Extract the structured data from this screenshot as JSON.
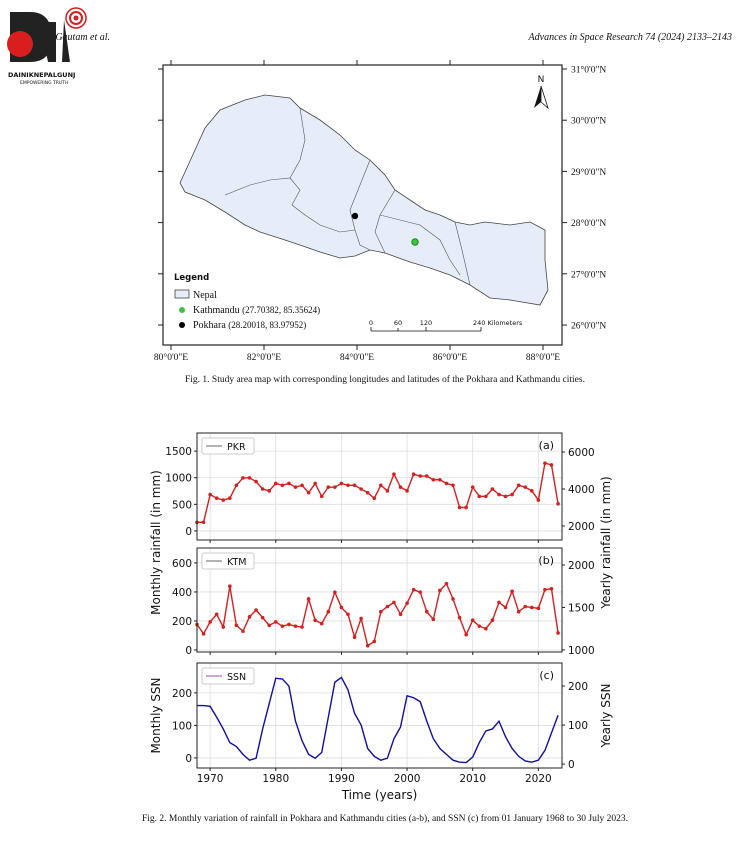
{
  "header": {
    "authors": "S.P. Gautam et al.",
    "journal": "Advances in Space Research 74 (2024) 2133–2143"
  },
  "logo": {
    "name": "DAINIKNEPALGUNJ",
    "tagline": "EMPOWERING TRUTH"
  },
  "figure1": {
    "latitude_labels": [
      "31°0'0\"N",
      "30°0'0\"N",
      "29°0'0\"N",
      "28°0'0\"N",
      "27°0'0\"N",
      "26°0'0\"N"
    ],
    "longitude_labels": [
      "80°0'0\"E",
      "82°0'0\"E",
      "84°0'0\"E",
      "86°0'0\"E",
      "88°0'0\"E"
    ],
    "north": "N",
    "legend": {
      "title": "Legend",
      "nepal": "Nepal",
      "kathmandu": {
        "name": "Kathmandu",
        "coords": "(27.70382, 85.35624)"
      },
      "pokhara": {
        "name": "Pokhara",
        "coords": "(28.20018, 83.97952)"
      }
    },
    "scale_labels": [
      "0",
      "60",
      "120",
      "240 Kilometers"
    ],
    "caption": "Fig. 1. Study area map with corresponding longitudes and latitudes of the Pokhara and Kathmandu cities."
  },
  "chart_data": [
    {
      "type": "line",
      "label": "(a)",
      "legend": "PKR",
      "legend_color": "#666666",
      "y_label": "Monthly rainfall (in mm)",
      "y2_label": "Yearly rainfall (in mm)",
      "y_color": "#111111",
      "y2_color": "#c8191e",
      "x": [
        1968,
        1969,
        1970,
        1971,
        1972,
        1973,
        1974,
        1975,
        1976,
        1977,
        1978,
        1979,
        1980,
        1981,
        1982,
        1983,
        1984,
        1985,
        1986,
        1987,
        1988,
        1989,
        1990,
        1991,
        1992,
        1993,
        1994,
        1995,
        1996,
        1997,
        1998,
        1999,
        2000,
        2001,
        2002,
        2003,
        2004,
        2005,
        2006,
        2007,
        2008,
        2009,
        2010,
        2011,
        2012,
        2013,
        2014,
        2015,
        2016,
        2017,
        2018,
        2019,
        2020,
        2021,
        2022,
        2023
      ],
      "series": [
        {
          "color": "#d62020",
          "axis": "y2",
          "values": [
            2200,
            2200,
            3700,
            3500,
            3400,
            3500,
            4200,
            4600,
            4600,
            4400,
            4000,
            3900,
            4300,
            4200,
            4300,
            4100,
            4200,
            3800,
            4300,
            3600,
            4100,
            4100,
            4300,
            4200,
            4200,
            4000,
            3800,
            3500,
            4200,
            3900,
            4800,
            4100,
            3900,
            4800,
            4700,
            4700,
            4500,
            4500,
            4300,
            4200,
            3000,
            3000,
            4100,
            3600,
            3600,
            4000,
            3700,
            3600,
            3700,
            4200,
            4100,
            3900,
            3400,
            5400,
            5300,
            3200
          ]
        }
      ],
      "xlim": [
        1968,
        2023.6
      ],
      "xticks": [
        1970,
        1980,
        1990,
        2000,
        2010,
        2020
      ],
      "ylim": [
        -170,
        1840
      ],
      "yticks": [
        0,
        500,
        1000,
        1500
      ],
      "y2lim": [
        1240,
        7030
      ],
      "y2ticks": [
        2000,
        4000,
        6000
      ],
      "grid": true
    },
    {
      "type": "line",
      "label": "(b)",
      "legend": "KTM",
      "legend_color": "#666666",
      "y_color": "#111111",
      "y2_color": "#c8191e",
      "x": [
        1968,
        1969,
        1970,
        1971,
        1972,
        1973,
        1974,
        1975,
        1976,
        1977,
        1978,
        1979,
        1980,
        1981,
        1982,
        1983,
        1984,
        1985,
        1986,
        1987,
        1988,
        1989,
        1990,
        1991,
        1992,
        1993,
        1994,
        1995,
        1996,
        1997,
        1998,
        1999,
        2000,
        2001,
        2002,
        2003,
        2004,
        2005,
        2006,
        2007,
        2008,
        2009,
        2010,
        2011,
        2012,
        2013,
        2014,
        2015,
        2016,
        2017,
        2018,
        2019,
        2020,
        2021,
        2022,
        2023
      ],
      "series": [
        {
          "color": "#d62020",
          "axis": "y2",
          "values": [
            1300,
            1190,
            1330,
            1420,
            1270,
            1750,
            1290,
            1220,
            1390,
            1470,
            1380,
            1290,
            1330,
            1280,
            1300,
            1280,
            1270,
            1600,
            1350,
            1310,
            1450,
            1680,
            1500,
            1420,
            1150,
            1370,
            1050,
            1100,
            1450,
            1510,
            1560,
            1420,
            1550,
            1710,
            1680,
            1450,
            1360,
            1700,
            1780,
            1600,
            1380,
            1180,
            1350,
            1280,
            1250,
            1350,
            1560,
            1500,
            1690,
            1450,
            1510,
            1500,
            1490,
            1710,
            1720,
            1200
          ]
        }
      ],
      "xlim": [
        1968,
        2023.6
      ],
      "xticks": [
        1970,
        1980,
        1990,
        2000,
        2010,
        2020
      ],
      "ylim": [
        -14,
        703
      ],
      "yticks": [
        0,
        200,
        400,
        600
      ],
      "y2lim": [
        976,
        2200
      ],
      "y2ticks": [
        1000,
        1500,
        2000
      ],
      "grid": true
    },
    {
      "type": "line",
      "label": "(c)",
      "legend": "SSN",
      "legend_color": "#9a4fb0",
      "y_label": "Monthly SSN",
      "y2_label": "Yearly SSN",
      "x_label": "Time (years)",
      "y_color": "#7b1f86",
      "y2_color": "#1a1aa8",
      "x": [
        1968,
        1969,
        1970,
        1971,
        1972,
        1973,
        1974,
        1975,
        1976,
        1977,
        1978,
        1979,
        1980,
        1981,
        1982,
        1983,
        1984,
        1985,
        1986,
        1987,
        1988,
        1989,
        1990,
        1991,
        1992,
        1993,
        1994,
        1995,
        1996,
        1997,
        1998,
        1999,
        2000,
        2001,
        2002,
        2003,
        2004,
        2005,
        2006,
        2007,
        2008,
        2009,
        2010,
        2011,
        2012,
        2013,
        2014,
        2015,
        2016,
        2017,
        2018,
        2019,
        2020,
        2021,
        2022,
        2023
      ],
      "series": [
        {
          "color": "#1010a0",
          "axis": "y2",
          "values": [
            150,
            150,
            148,
            120,
            90,
            55,
            45,
            25,
            10,
            15,
            90,
            155,
            220,
            218,
            200,
            110,
            60,
            25,
            15,
            30,
            120,
            210,
            222,
            190,
            130,
            100,
            40,
            20,
            10,
            15,
            65,
            95,
            175,
            170,
            160,
            110,
            65,
            40,
            25,
            10,
            5,
            4,
            18,
            55,
            85,
            90,
            110,
            70,
            40,
            20,
            8,
            5,
            10,
            35,
            80,
            125
          ]
        }
      ],
      "xlim": [
        1968,
        2023.6
      ],
      "xticks": [
        1970,
        1980,
        1990,
        2000,
        2010,
        2020
      ],
      "ylim": [
        -31,
        292
      ],
      "yticks": [
        0,
        100,
        200
      ],
      "y2lim": [
        -10,
        259
      ],
      "y2ticks": [
        0,
        100,
        200
      ],
      "grid": true
    }
  ],
  "figure2": {
    "caption": "Fig. 2. Monthly variation of rainfall in Pokhara and Kathmandu cities (a-b), and SSN (c) from 01 January 1968 to 30 July 2023."
  }
}
